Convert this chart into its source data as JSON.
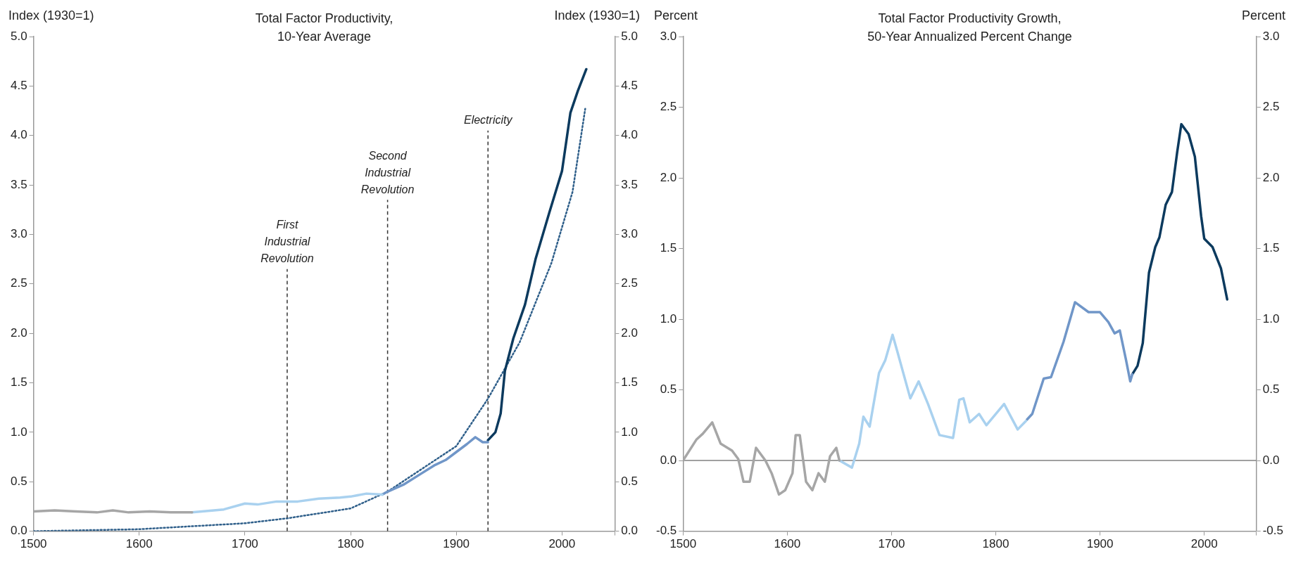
{
  "chart_data": [
    {
      "type": "line",
      "title": "Total Factor Productivity, 10-Year Average",
      "ylabel": "Index (1930=1)",
      "y2label": "Index (1930=1)",
      "xlim": [
        1500,
        2050
      ],
      "xticks": [
        1500,
        1600,
        1700,
        1800,
        1900,
        2000
      ],
      "ylim": [
        0,
        5
      ],
      "yticks": [
        {
          "value": 0,
          "label": "0.0"
        },
        {
          "value": 0.5,
          "label": "0.5"
        },
        {
          "value": 1,
          "label": "1.0"
        },
        {
          "value": 1.5,
          "label": "1.5"
        },
        {
          "value": 2,
          "label": "2.0"
        },
        {
          "value": 2.5,
          "label": "2.5"
        },
        {
          "value": 3,
          "label": "3.0"
        },
        {
          "value": 3.5,
          "label": "3.5"
        },
        {
          "value": 4,
          "label": "4.0"
        },
        {
          "value": 4.5,
          "label": "4.5"
        },
        {
          "value": 5,
          "label": "5.0"
        }
      ],
      "y2lim": [
        0,
        5
      ],
      "y2ticks": [
        {
          "value": 0,
          "label": "0.0"
        },
        {
          "value": 0.5,
          "label": "0.5"
        },
        {
          "value": 1,
          "label": "1.0"
        },
        {
          "value": 1.5,
          "label": "1.5"
        },
        {
          "value": 2,
          "label": "2.0"
        },
        {
          "value": 2.5,
          "label": "2.5"
        },
        {
          "value": 3,
          "label": "3.0"
        },
        {
          "value": 3.5,
          "label": "3.5"
        },
        {
          "value": 4,
          "label": "4.0"
        },
        {
          "value": 4.5,
          "label": "4.5"
        },
        {
          "value": 5,
          "label": "5.0"
        }
      ],
      "legend": false,
      "grid": false,
      "series": [
        {
          "color": "#a6a6a6",
          "x": [
            1500,
            1520,
            1540,
            1560,
            1575,
            1590,
            1610,
            1630,
            1650
          ],
          "values": [
            0.2,
            0.21,
            0.2,
            0.19,
            0.21,
            0.19,
            0.2,
            0.19,
            0.19
          ]
        },
        {
          "color": "#a9d1ef",
          "x": [
            1650,
            1680,
            1700,
            1712,
            1730,
            1750,
            1770,
            1790,
            1800,
            1815,
            1830
          ],
          "values": [
            0.19,
            0.22,
            0.28,
            0.27,
            0.3,
            0.3,
            0.33,
            0.34,
            0.35,
            0.38,
            0.37
          ]
        },
        {
          "color": "#7096c8",
          "x": [
            1830,
            1835,
            1850,
            1865,
            1880,
            1890,
            1900,
            1910,
            1918,
            1925,
            1930
          ],
          "values": [
            0.37,
            0.4,
            0.47,
            0.57,
            0.67,
            0.72,
            0.8,
            0.88,
            0.95,
            0.9,
            0.9
          ]
        },
        {
          "color": "#0c3a5e",
          "x": [
            1930,
            1937,
            1942,
            1946,
            1954,
            1965,
            1975,
            1988,
            2000,
            2008,
            2015,
            2023
          ],
          "values": [
            0.92,
            1.0,
            1.19,
            1.62,
            1.95,
            2.29,
            2.75,
            3.22,
            3.64,
            4.23,
            4.45,
            4.67
          ]
        },
        {
          "color": "#2f5f8a",
          "line_style": "dotted",
          "x": [
            1500,
            1600,
            1700,
            1740,
            1800,
            1835,
            1900,
            1930,
            1960,
            1990,
            2010,
            2022
          ],
          "values": [
            0.0,
            0.02,
            0.08,
            0.13,
            0.23,
            0.4,
            0.86,
            1.34,
            1.91,
            2.71,
            3.43,
            4.27
          ]
        }
      ],
      "ref_lines": [
        {
          "axis": "x",
          "value": 1740,
          "label": "First Industrial Revolution",
          "line_style": "dashed"
        },
        {
          "axis": "x",
          "value": 1835,
          "label": "Second Industrial Revolution",
          "line_style": "dashed"
        },
        {
          "axis": "x",
          "value": 1930,
          "label": "Electricity",
          "line_style": "dashed"
        }
      ]
    },
    {
      "type": "line",
      "title": "Total Factor Productivity Growth, 50-Year Annualized Percent Change",
      "ylabel": "Percent",
      "y2label": "Percent",
      "xlim": [
        1500,
        2050
      ],
      "xticks": [
        1500,
        1600,
        1700,
        1800,
        1900,
        2000
      ],
      "ylim": [
        -0.5,
        3
      ],
      "yticks": [
        {
          "value": -0.5,
          "label": "-0.5"
        },
        {
          "value": 0,
          "label": "0.0"
        },
        {
          "value": 0.5,
          "label": "0.5"
        },
        {
          "value": 1,
          "label": "1.0"
        },
        {
          "value": 1.5,
          "label": "1.5"
        },
        {
          "value": 2,
          "label": "2.0"
        },
        {
          "value": 2.5,
          "label": "2.5"
        },
        {
          "value": 3,
          "label": "3.0"
        }
      ],
      "y2lim": [
        -0.5,
        3
      ],
      "y2ticks": [
        {
          "value": -0.5,
          "label": "-0.5"
        },
        {
          "value": 0,
          "label": "0.0"
        },
        {
          "value": 0.5,
          "label": "0.5"
        },
        {
          "value": 1,
          "label": "1.0"
        },
        {
          "value": 1.5,
          "label": "1.5"
        },
        {
          "value": 2,
          "label": "2.0"
        },
        {
          "value": 2.5,
          "label": "2.5"
        },
        {
          "value": 3,
          "label": "3.0"
        }
      ],
      "legend": false,
      "grid": false,
      "series": [
        {
          "color": "#a6a6a6",
          "x": [
            1500,
            1513,
            1519,
            1528,
            1536,
            1547,
            1553,
            1558,
            1564,
            1570,
            1579,
            1585,
            1592,
            1598,
            1605,
            1608,
            1612,
            1618,
            1624,
            1630,
            1636,
            1641,
            1647,
            1650
          ],
          "values": [
            0.0,
            0.15,
            0.19,
            0.27,
            0.12,
            0.07,
            0.01,
            -0.15,
            -0.15,
            0.09,
            0.0,
            -0.09,
            -0.24,
            -0.21,
            -0.09,
            0.18,
            0.18,
            -0.15,
            -0.21,
            -0.09,
            -0.15,
            0.03,
            0.09,
            0.0
          ]
        },
        {
          "color": "#a9d1ef",
          "x": [
            1650,
            1662,
            1669,
            1673,
            1679,
            1688,
            1694,
            1701,
            1706,
            1718,
            1726,
            1735,
            1746,
            1759,
            1765,
            1769,
            1775,
            1784,
            1791,
            1808,
            1821,
            1829
          ],
          "values": [
            0.0,
            -0.05,
            0.12,
            0.31,
            0.24,
            0.62,
            0.71,
            0.89,
            0.76,
            0.44,
            0.56,
            0.4,
            0.18,
            0.16,
            0.43,
            0.44,
            0.27,
            0.33,
            0.25,
            0.4,
            0.22,
            0.28
          ]
        },
        {
          "color": "#7096c8",
          "x": [
            1830,
            1835,
            1846,
            1853,
            1865,
            1876,
            1889,
            1900,
            1908,
            1914,
            1919,
            1925,
            1929,
            1931
          ],
          "values": [
            0.29,
            0.33,
            0.58,
            0.59,
            0.84,
            1.12,
            1.05,
            1.05,
            0.98,
            0.9,
            0.92,
            0.71,
            0.56,
            0.61
          ]
        },
        {
          "color": "#0c3a5e",
          "x": [
            1931,
            1936,
            1941,
            1947,
            1953,
            1957,
            1963,
            1969,
            1974,
            1978,
            1985,
            1991,
            1997,
            2000,
            2008,
            2016,
            2022
          ],
          "values": [
            0.61,
            0.67,
            0.83,
            1.33,
            1.51,
            1.58,
            1.81,
            1.9,
            2.18,
            2.38,
            2.31,
            2.15,
            1.73,
            1.57,
            1.51,
            1.36,
            1.14
          ]
        }
      ],
      "ref_lines": [
        {
          "axis": "y",
          "value": 0,
          "color": "#808080"
        }
      ]
    }
  ]
}
